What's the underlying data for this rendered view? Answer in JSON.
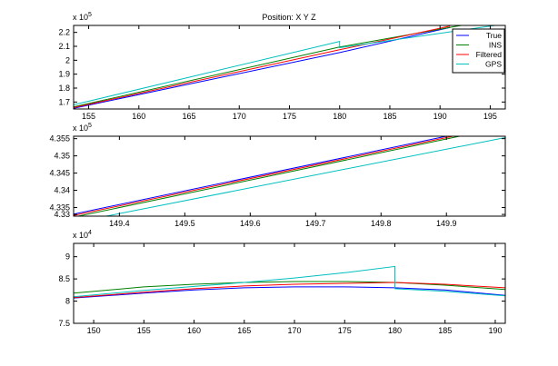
{
  "figure_title": "Position: X Y Z",
  "legend": {
    "placement": "top-right of first panel",
    "entries": [
      {
        "label": "True",
        "color": "#0000ff"
      },
      {
        "label": "INS",
        "color": "#008000"
      },
      {
        "label": "Filtered",
        "color": "#ff0000"
      },
      {
        "label": "GPS",
        "color": "#00bfbf"
      }
    ]
  },
  "chart_data": [
    {
      "type": "line",
      "exponent_label": "x 10^5",
      "xlim": [
        153.5,
        196.5
      ],
      "ylim": [
        1.65,
        2.25
      ],
      "xticks": [
        155,
        160,
        165,
        170,
        175,
        180,
        185,
        190,
        195
      ],
      "yticks": [
        1.7,
        1.8,
        1.9,
        2.0,
        2.1,
        2.2
      ],
      "yticklabels": [
        "1.7",
        "1.8",
        "1.9",
        "2",
        "2.1",
        "2.2"
      ],
      "grid": false,
      "series": [
        {
          "name": "True",
          "color": "#0000ff",
          "x": [
            153.5,
            180,
            191
          ],
          "y": [
            1.655,
            2.055,
            2.235
          ]
        },
        {
          "name": "INS",
          "color": "#008000",
          "x": [
            153.5,
            180,
            192.5
          ],
          "y": [
            1.665,
            2.095,
            2.255
          ]
        },
        {
          "name": "Filtered",
          "color": "#ff0000",
          "x": [
            153.5,
            180,
            191
          ],
          "y": [
            1.66,
            2.075,
            2.245
          ]
        },
        {
          "name": "GPS",
          "color": "#00bfbf",
          "x": [
            153.5,
            180,
            180,
            196
          ],
          "y": [
            1.68,
            2.135,
            2.09,
            2.255
          ]
        }
      ]
    },
    {
      "type": "line",
      "exponent_label": "x 10^5",
      "xlim": [
        149.33,
        149.99
      ],
      "ylim": [
        4.3325,
        4.3557
      ],
      "xticks": [
        149.4,
        149.5,
        149.6,
        149.7,
        149.8,
        149.9
      ],
      "xticklabels": [
        "149.4",
        "149.5",
        "149.6",
        "149.7",
        "149.8",
        "149.9"
      ],
      "yticks": [
        4.333,
        4.335,
        4.34,
        4.345,
        4.35,
        4.355
      ],
      "yticklabels": [
        "4.33",
        "4.335",
        "4.34",
        "4.345",
        "4.35",
        "4.355"
      ],
      "grid": false,
      "series": [
        {
          "name": "True",
          "color": "#0000ff",
          "x": [
            149.33,
            149.9
          ],
          "y": [
            4.3331,
            4.3557
          ]
        },
        {
          "name": "INS",
          "color": "#008000",
          "x": [
            149.33,
            149.92
          ],
          "y": [
            4.3322,
            4.3557
          ]
        },
        {
          "name": "Filtered",
          "color": "#ff0000",
          "x": [
            149.33,
            149.91
          ],
          "y": [
            4.3327,
            4.3557
          ]
        },
        {
          "name": "GPS",
          "color": "#00bfbf",
          "x": [
            149.38,
            149.99
          ],
          "y": [
            4.3325,
            4.3553
          ]
        }
      ]
    },
    {
      "type": "line",
      "exponent_label": "x 10^4",
      "xlim": [
        148,
        191
      ],
      "ylim": [
        7.5,
        9.3
      ],
      "xticks": [
        150,
        155,
        160,
        165,
        170,
        175,
        180,
        185,
        190
      ],
      "yticks": [
        7.5,
        8,
        8.5,
        9
      ],
      "yticklabels": [
        "7.5",
        "8",
        "8.5",
        "9"
      ],
      "grid": false,
      "series": [
        {
          "name": "True",
          "color": "#0000ff",
          "x": [
            148,
            155,
            160,
            165,
            170,
            175,
            180,
            185,
            191
          ],
          "y": [
            8.07,
            8.18,
            8.25,
            8.3,
            8.32,
            8.32,
            8.3,
            8.25,
            8.13
          ]
        },
        {
          "name": "INS",
          "color": "#008000",
          "x": [
            148,
            155,
            160,
            165,
            170,
            175,
            180,
            185,
            191
          ],
          "y": [
            8.18,
            8.32,
            8.38,
            8.42,
            8.44,
            8.44,
            8.42,
            8.36,
            8.26
          ]
        },
        {
          "name": "Filtered",
          "color": "#ff0000",
          "x": [
            148,
            155,
            160,
            165,
            170,
            175,
            180,
            185,
            191
          ],
          "y": [
            8.08,
            8.2,
            8.28,
            8.34,
            8.38,
            8.4,
            8.42,
            8.38,
            8.3
          ]
        },
        {
          "name": "GPS",
          "color": "#00bfbf",
          "x": [
            148,
            155,
            160,
            165,
            170,
            175,
            180,
            180,
            185,
            191
          ],
          "y": [
            8.1,
            8.24,
            8.33,
            8.42,
            8.52,
            8.64,
            8.78,
            8.28,
            8.22,
            8.12
          ]
        }
      ]
    }
  ]
}
